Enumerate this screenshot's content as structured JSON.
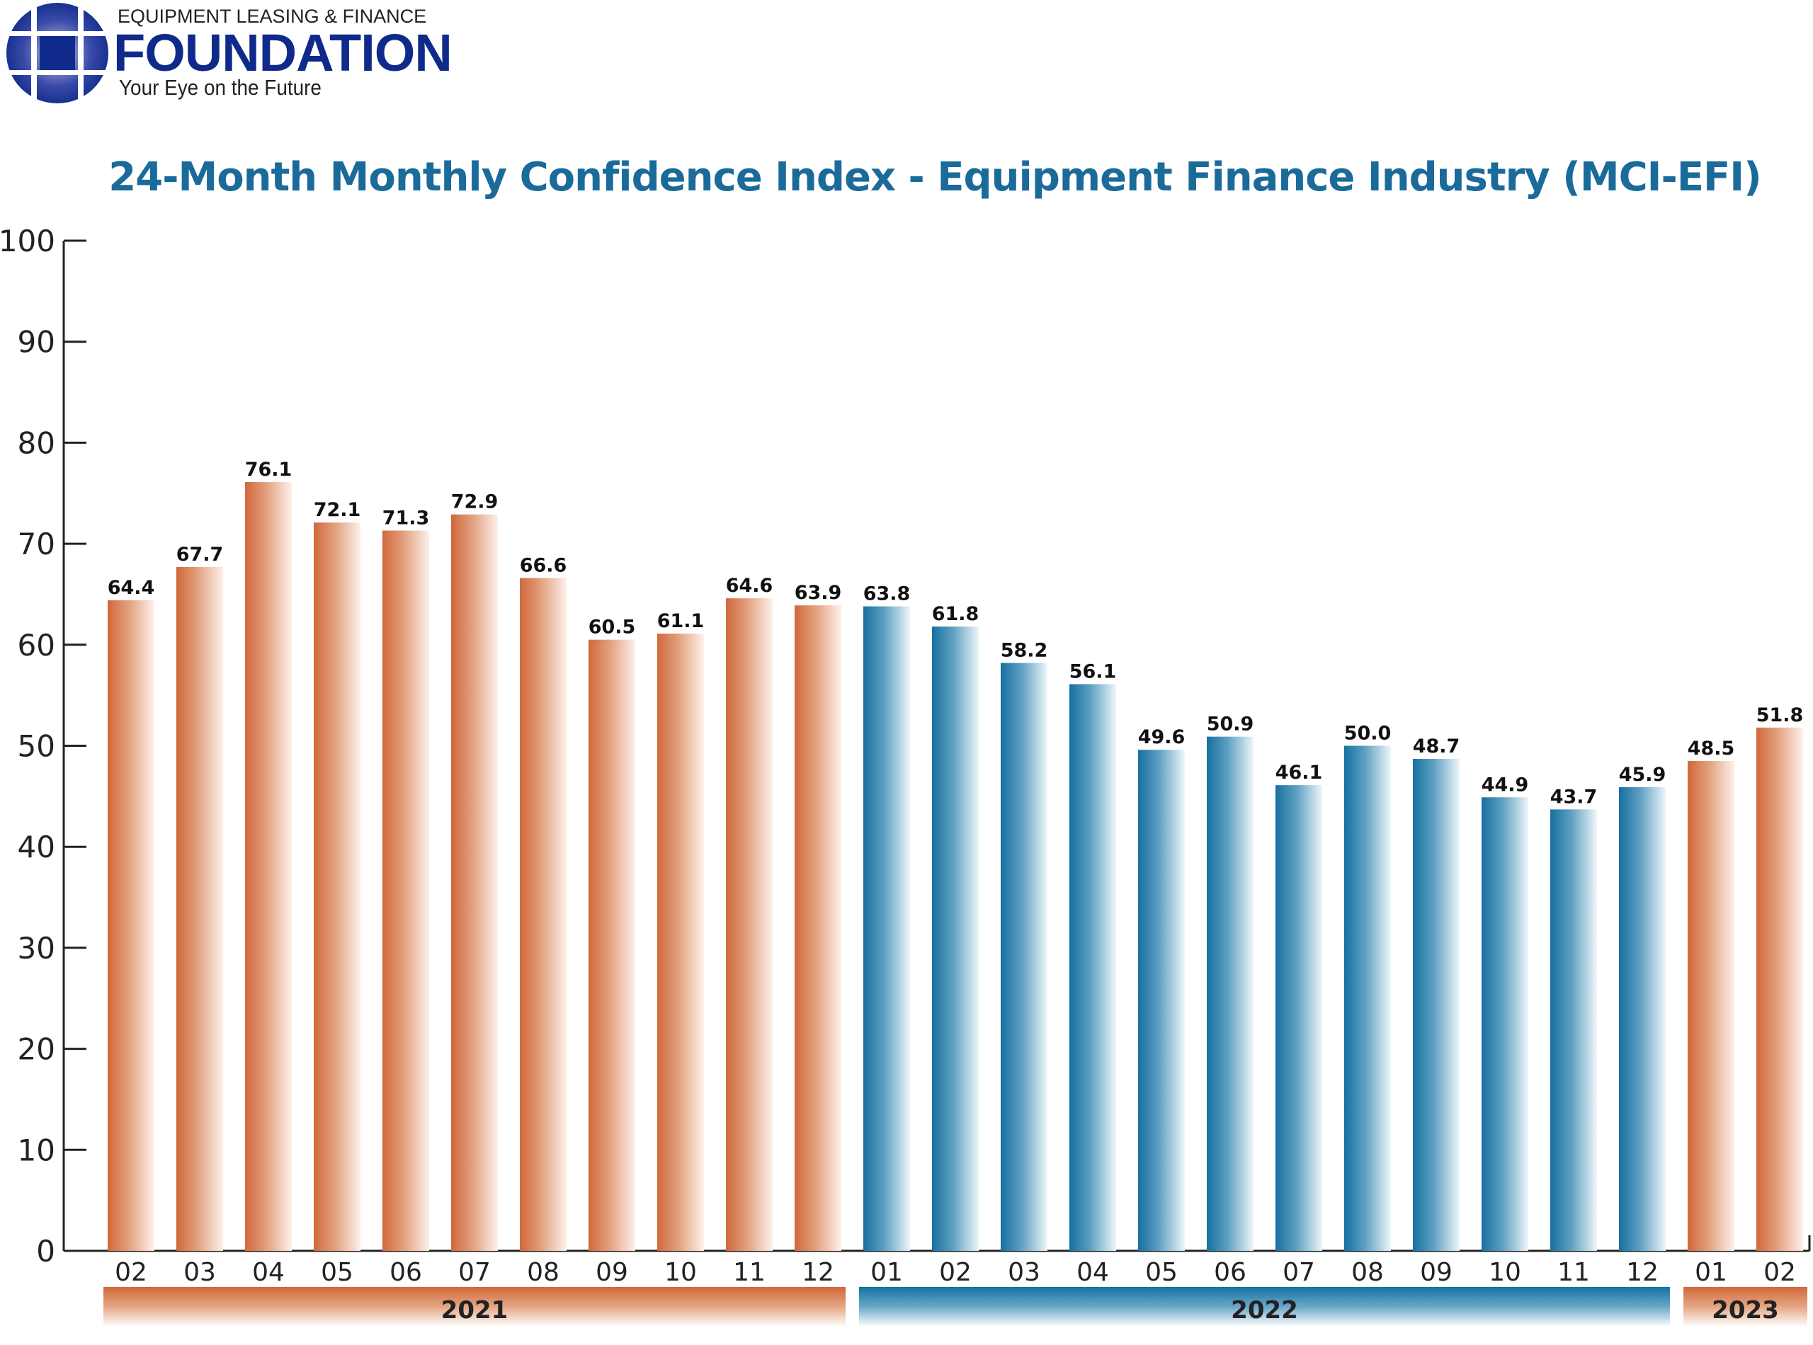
{
  "logo": {
    "top_text": "EQUIPMENT LEASING & FINANCE",
    "main_text": "FOUNDATION",
    "tagline": "Your Eye on the Future",
    "color": "#0f2a8a"
  },
  "chart_data": {
    "type": "bar",
    "title": "24-Month Monthly Confidence Index - Equipment Finance Industry (MCI-EFI)",
    "xlabel": "",
    "ylabel": "",
    "ylim": [
      0,
      100
    ],
    "yticks": [
      0,
      10,
      20,
      30,
      40,
      50,
      60,
      70,
      80,
      90,
      100
    ],
    "grid": false,
    "categories": [
      "02",
      "03",
      "04",
      "05",
      "06",
      "07",
      "08",
      "09",
      "10",
      "11",
      "12",
      "01",
      "02",
      "03",
      "04",
      "05",
      "06",
      "07",
      "08",
      "09",
      "10",
      "11",
      "12",
      "01",
      "02"
    ],
    "values": [
      64.4,
      67.7,
      76.1,
      72.1,
      71.3,
      72.9,
      66.6,
      60.5,
      61.1,
      64.6,
      63.9,
      63.8,
      61.8,
      58.2,
      56.1,
      49.6,
      50.9,
      46.1,
      50.0,
      48.7,
      44.9,
      43.7,
      45.9,
      48.5,
      51.8
    ],
    "year_groups": [
      {
        "label": "2021",
        "start": 0,
        "end": 10,
        "color": "#d0683a"
      },
      {
        "label": "2022",
        "start": 11,
        "end": 22,
        "color": "#1570a0"
      },
      {
        "label": "2023",
        "start": 23,
        "end": 24,
        "color": "#d0683a"
      }
    ],
    "data_labels": true
  }
}
